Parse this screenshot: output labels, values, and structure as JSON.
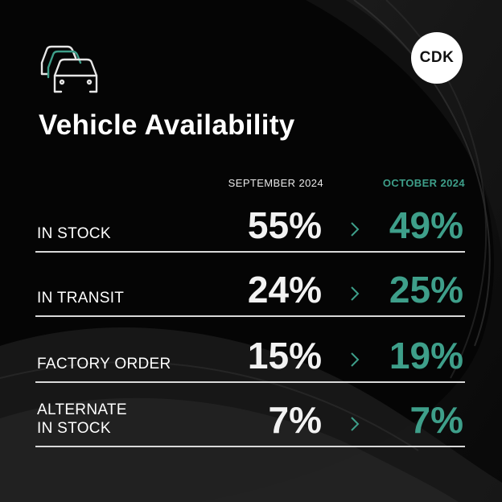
{
  "logo_text": "CDK",
  "title": "Vehicle Availability",
  "columns": {
    "previous": "SEPTEMBER 2024",
    "current": "OCTOBER 2024"
  },
  "icons": {
    "header": "cars-icon",
    "separator": "chevron-right-icon"
  },
  "colors": {
    "accent": "#3e9f8a",
    "background": "#050505",
    "text": "#ffffff"
  },
  "rows": [
    {
      "label": "IN STOCK",
      "previous": "55%",
      "current": "49%"
    },
    {
      "label": "IN TRANSIT",
      "previous": "24%",
      "current": "25%"
    },
    {
      "label": "FACTORY ORDER",
      "previous": "15%",
      "current": "19%"
    },
    {
      "label": "ALTERNATE\nIN STOCK",
      "previous": "7%",
      "current": "7%"
    }
  ]
}
